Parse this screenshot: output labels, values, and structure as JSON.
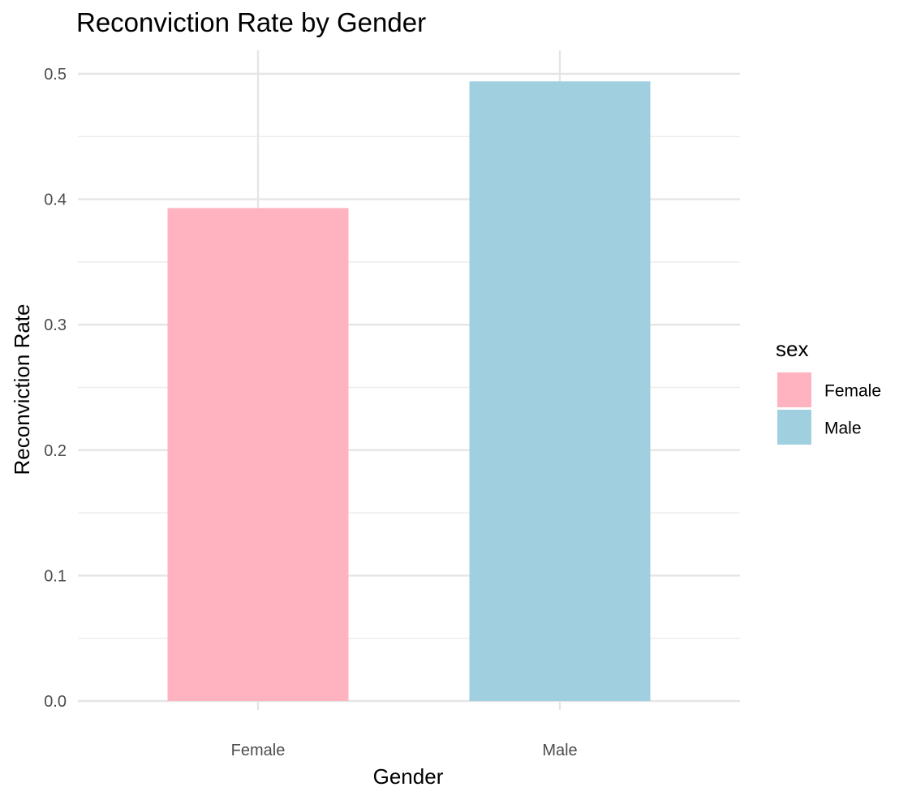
{
  "chart_data": {
    "type": "bar",
    "title": "Reconviction Rate by Gender",
    "xlabel": "Gender",
    "ylabel": "Reconviction Rate",
    "categories": [
      "Female",
      "Male"
    ],
    "values": [
      0.393,
      0.494
    ],
    "colors": [
      "#ffb3c1",
      "#a0cfe0"
    ],
    "ylim": [
      0,
      0.52
    ],
    "yticks": [
      {
        "value": 0.0,
        "label": "0.0"
      },
      {
        "value": 0.1,
        "label": "0.1"
      },
      {
        "value": 0.2,
        "label": "0.2"
      },
      {
        "value": 0.3,
        "label": "0.3"
      },
      {
        "value": 0.4,
        "label": "0.4"
      },
      {
        "value": 0.5,
        "label": "0.5"
      }
    ],
    "grid": true,
    "legend": {
      "title": "sex",
      "placement": "right",
      "entries": [
        {
          "label": "Female",
          "color": "#ffb3c1"
        },
        {
          "label": "Male",
          "color": "#a0cfe0"
        }
      ]
    }
  }
}
